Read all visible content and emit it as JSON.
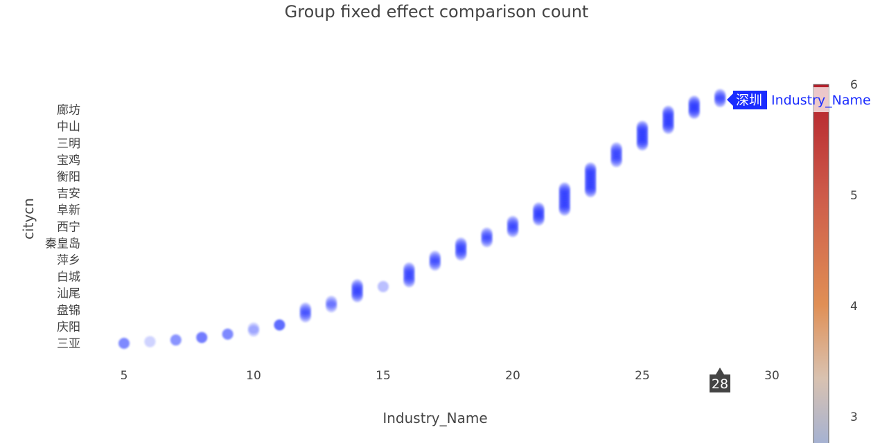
{
  "chart_data": {
    "type": "scatter",
    "title": "Group fixed effect comparison count",
    "xlabel": "Industry_Name",
    "ylabel": "citycn",
    "xlim": [
      4.5,
      30.5
    ],
    "x_ticks": [
      5,
      10,
      15,
      20,
      25,
      30
    ],
    "y_categories": [
      "三亚",
      "庆阳",
      "盘锦",
      "汕尾",
      "白城",
      "萍乡",
      "秦皇岛",
      "西宁",
      "阜新",
      "吉安",
      "衡阳",
      "宝鸡",
      "三明",
      "中山",
      "廊坊"
    ],
    "colorbar": {
      "ticks": [
        3,
        4,
        5,
        6
      ],
      "colorscale": [
        "#9fb0d6",
        "#d9c2b0",
        "#e08f55",
        "#cd5b4a",
        "#b31e2a"
      ]
    },
    "marker_color": "#1a2cff",
    "grid": false,
    "legend": "none",
    "groups": [
      {
        "x": 5,
        "y_top": 0.0,
        "y_bottom": 0.0,
        "opacity": 0.55
      },
      {
        "x": 6,
        "y_top": 0.1,
        "y_bottom": 0.1,
        "opacity": 0.22
      },
      {
        "x": 7,
        "y_top": 0.2,
        "y_bottom": 0.2,
        "opacity": 0.5
      },
      {
        "x": 8,
        "y_top": 0.35,
        "y_bottom": 0.4,
        "opacity": 0.62
      },
      {
        "x": 9,
        "y_top": 0.55,
        "y_bottom": 0.55,
        "opacity": 0.55
      },
      {
        "x": 10,
        "y_top": 0.75,
        "y_bottom": 0.9,
        "opacity": 0.7
      },
      {
        "x": 11,
        "y_top": 1.1,
        "y_bottom": 1.1,
        "opacity": 0.7
      },
      {
        "x": 12,
        "y_top": 1.6,
        "y_bottom": 2.1,
        "opacity": 0.85
      },
      {
        "x": 13,
        "y_top": 2.2,
        "y_bottom": 2.5,
        "opacity": 0.85
      },
      {
        "x": 14,
        "y_top": 2.8,
        "y_bottom": 3.5,
        "opacity": 0.9
      },
      {
        "x": 15,
        "y_top": 3.4,
        "y_bottom": 3.4,
        "opacity": 0.3
      },
      {
        "x": 16,
        "y_top": 3.7,
        "y_bottom": 4.5,
        "opacity": 0.95
      },
      {
        "x": 17,
        "y_top": 4.7,
        "y_bottom": 5.2,
        "opacity": 0.9
      },
      {
        "x": 18,
        "y_top": 5.3,
        "y_bottom": 6.0,
        "opacity": 0.9
      },
      {
        "x": 19,
        "y_top": 6.1,
        "y_bottom": 6.6,
        "opacity": 0.9
      },
      {
        "x": 20,
        "y_top": 6.7,
        "y_bottom": 7.3,
        "opacity": 0.9
      },
      {
        "x": 21,
        "y_top": 7.4,
        "y_bottom": 8.1,
        "opacity": 0.95
      },
      {
        "x": 22,
        "y_top": 8.0,
        "y_bottom": 9.3,
        "opacity": 1.0
      },
      {
        "x": 23,
        "y_top": 9.1,
        "y_bottom": 10.5,
        "opacity": 1.0
      },
      {
        "x": 24,
        "y_top": 10.9,
        "y_bottom": 11.7,
        "opacity": 0.95
      },
      {
        "x": 25,
        "y_top": 11.9,
        "y_bottom": 13.0,
        "opacity": 1.0
      },
      {
        "x": 26,
        "y_top": 12.9,
        "y_bottom": 13.9,
        "opacity": 1.0
      },
      {
        "x": 27,
        "y_top": 13.8,
        "y_bottom": 14.5,
        "opacity": 1.0
      },
      {
        "x": 28,
        "y_top": 14.5,
        "y_bottom": 14.9,
        "opacity": 1.0
      }
    ],
    "hover": {
      "y_label": "深圳",
      "x_label": "28",
      "trace_name": "Industry_Name"
    }
  }
}
